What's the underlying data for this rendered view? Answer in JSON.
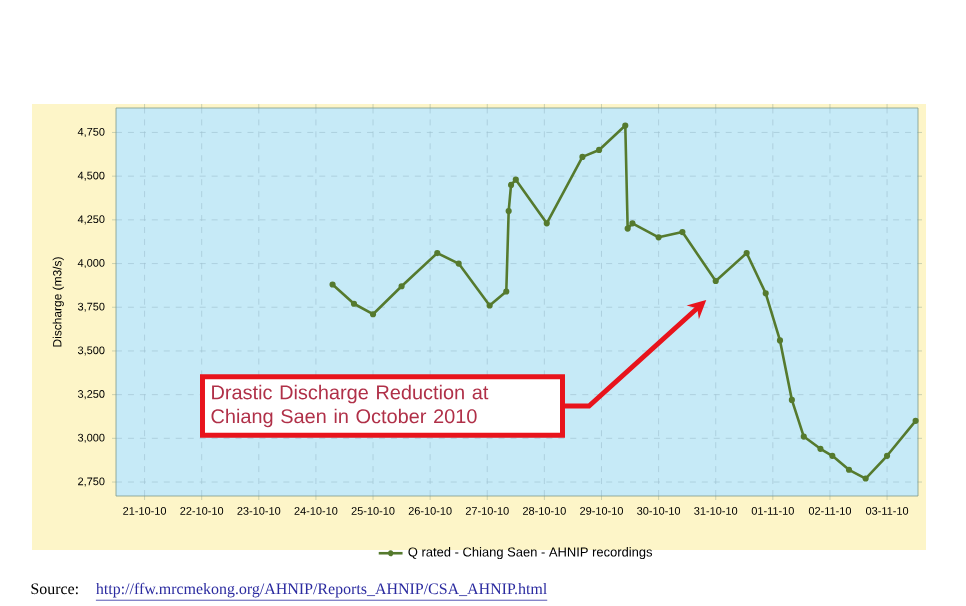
{
  "chart_data": {
    "type": "line",
    "ylabel": "Discharge (m3/s)",
    "x": [
      "2010-10-24T07:00",
      "2010-10-24T16:00",
      "2010-10-25T00:00",
      "2010-10-25T12:00",
      "2010-10-26T03:00",
      "2010-10-26T12:00",
      "2010-10-27T01:00",
      "2010-10-27T08:00",
      "2010-10-27T09:00",
      "2010-10-27T10:00",
      "2010-10-27T12:00",
      "2010-10-28T01:00",
      "2010-10-28T16:00",
      "2010-10-28T23:00",
      "2010-10-29T10:00",
      "2010-10-29T11:00",
      "2010-10-29T13:00",
      "2010-10-30T00:00",
      "2010-10-30T10:00",
      "2010-10-31T00:00",
      "2010-10-31T13:00",
      "2010-10-31T21:00",
      "2010-11-01T03:00",
      "2010-11-01T08:00",
      "2010-11-01T13:00",
      "2010-11-01T20:00",
      "2010-11-02T01:00",
      "2010-11-02T08:00",
      "2010-11-02T15:00",
      "2010-11-03T00:00",
      "2010-11-03T12:00"
    ],
    "series": [
      {
        "name": "Q rated - Chiang Saen - AHNIP recordings",
        "color": "#557a2e",
        "values": [
          3880,
          3770,
          3710,
          3870,
          4060,
          4000,
          3760,
          3840,
          4300,
          4450,
          4480,
          4230,
          4610,
          4650,
          4790,
          4200,
          4230,
          4150,
          4180,
          3900,
          4060,
          3830,
          3560,
          3220,
          3010,
          2940,
          2900,
          2820,
          2770,
          2900,
          3100
        ]
      }
    ],
    "xlim": [
      "2010-10-20T12:00",
      "2010-11-03T13:00"
    ],
    "xticks": [
      {
        "value": "2010-10-21",
        "label": "21-10-10"
      },
      {
        "value": "2010-10-22",
        "label": "22-10-10"
      },
      {
        "value": "2010-10-23",
        "label": "23-10-10"
      },
      {
        "value": "2010-10-24",
        "label": "24-10-10"
      },
      {
        "value": "2010-10-25",
        "label": "25-10-10"
      },
      {
        "value": "2010-10-26",
        "label": "26-10-10"
      },
      {
        "value": "2010-10-27",
        "label": "27-10-10"
      },
      {
        "value": "2010-10-28",
        "label": "28-10-10"
      },
      {
        "value": "2010-10-29",
        "label": "29-10-10"
      },
      {
        "value": "2010-10-30",
        "label": "30-10-10"
      },
      {
        "value": "2010-10-31",
        "label": "31-10-10"
      },
      {
        "value": "2010-11-01",
        "label": "01-11-10"
      },
      {
        "value": "2010-11-02",
        "label": "02-11-10"
      },
      {
        "value": "2010-11-03",
        "label": "03-11-10"
      }
    ],
    "ylim": [
      2670,
      4890
    ],
    "yticks": [
      {
        "value": 2750,
        "label": "2,750"
      },
      {
        "value": 3000,
        "label": "3,000"
      },
      {
        "value": 3250,
        "label": "3,250"
      },
      {
        "value": 3500,
        "label": "3,500"
      },
      {
        "value": 3750,
        "label": "3,750"
      },
      {
        "value": 4000,
        "label": "4,000"
      },
      {
        "value": 4250,
        "label": "4,250"
      },
      {
        "value": 4500,
        "label": "4,500"
      },
      {
        "value": 4750,
        "label": "4,750"
      }
    ],
    "grid": true,
    "legend": "bottom",
    "marker": "circle",
    "line_style": "solid",
    "annotations": [
      "Drastic Discharge Reduction at Chiang Saen in October 2010",
      "Source:",
      "http://ffw.mrcmekong.org/AHNIP/Reports_AHNIP/CSA_AHNIP.html"
    ]
  }
}
